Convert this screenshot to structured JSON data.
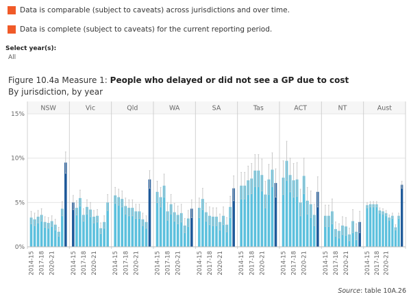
{
  "legend": [
    {
      "text": "Data is comparable (subject to caveats) across jurisdictions and over time.",
      "color": "#f05a28"
    },
    {
      "text": "Data is complete (subject to caveats) for the current reporting period.",
      "color": "#f05a28"
    }
  ],
  "filter": {
    "label": "Select year(s):",
    "value": "All"
  },
  "figure": {
    "title_prefix": "Figure 10.4a Measure 1: ",
    "title_main": "People who delayed or did not see a GP due to cost",
    "subtitle": "By jurisdiction, by year"
  },
  "source": {
    "label": "Source",
    "text": ": table 10A.26"
  },
  "colors": {
    "light": "#5cc0dd",
    "dark": "#1f5a9a",
    "error": "#c8c8c8",
    "grid": "#e4e4e4",
    "separator": "#d0d0d0"
  },
  "chart_data": {
    "type": "bar",
    "panels": [
      "NSW",
      "Vic",
      "Qld",
      "WA",
      "SA",
      "Tas",
      "ACT",
      "NT",
      "Aust"
    ],
    "x_labels": [
      "2014-15",
      "2017-18",
      "2020-21"
    ],
    "y_ticks": [
      "15%",
      "10%",
      "5%",
      "0%"
    ],
    "ylim": [
      0,
      15
    ],
    "series": [
      {
        "jurisdiction": "NSW",
        "values": [
          3.3,
          3.1,
          3.4,
          3.6,
          2.8,
          2.7,
          2.9,
          2.5,
          1.7,
          4.3,
          9.5
        ]
      },
      {
        "jurisdiction": "Vic",
        "values": [
          5.0,
          4.4,
          5.5,
          3.6,
          4.5,
          4.2,
          3.4,
          3.5,
          2.1,
          2.8,
          5.0
        ]
      },
      {
        "jurisdiction": "Qld",
        "values": [
          5.8,
          5.6,
          5.4,
          4.6,
          4.4,
          4.4,
          4.0,
          4.0,
          3.1,
          2.8,
          7.6
        ]
      },
      {
        "jurisdiction": "WA",
        "values": [
          6.2,
          5.6,
          6.9,
          4.0,
          4.8,
          3.9,
          3.6,
          3.8,
          2.4,
          3.2,
          4.3
        ]
      },
      {
        "jurisdiction": "SA",
        "values": [
          4.4,
          5.4,
          3.9,
          3.5,
          3.4,
          3.4,
          2.8,
          3.5,
          2.5,
          4.5,
          6.6
        ]
      },
      {
        "jurisdiction": "Tas",
        "values": [
          6.9,
          6.9,
          7.5,
          7.7,
          8.6,
          8.6,
          8.1,
          5.9,
          7.6,
          8.7,
          7.2
        ]
      },
      {
        "jurisdiction": "ACT",
        "values": [
          7.8,
          9.7,
          8.1,
          7.5,
          7.6,
          5.0,
          8.0,
          5.2,
          4.8,
          3.6,
          6.2
        ]
      },
      {
        "jurisdiction": "NT",
        "values": [
          3.5,
          3.5,
          4.0,
          2.0,
          1.8,
          2.4,
          2.3,
          1.4,
          2.9,
          1.7,
          2.8
        ]
      },
      {
        "jurisdiction": "Aust",
        "values": [
          4.7,
          4.8,
          4.8,
          4.8,
          4.1,
          4.0,
          3.8,
          3.3,
          3.5,
          2.2,
          3.5,
          7.0
        ]
      }
    ],
    "highlighted_index": {
      "NSW": 10,
      "Vic": 0,
      "Qld": 10,
      "WA": 10,
      "SA": 10,
      "Tas": 10,
      "ACT": 10,
      "NT": 10,
      "Aust": 11
    },
    "error_ranges": [
      [
        [
          2.6,
          4.0
        ],
        [
          2.4,
          3.8
        ],
        [
          2.7,
          4.1
        ],
        [
          2.9,
          4.3
        ],
        [
          2.2,
          3.4
        ],
        [
          2.1,
          3.3
        ],
        [
          2.3,
          3.5
        ],
        [
          1.9,
          3.1
        ],
        [
          1.2,
          2.2
        ],
        [
          3.5,
          5.1
        ],
        [
          8.3,
          10.7
        ]
      ],
      [
        [
          4.2,
          5.8
        ],
        [
          3.6,
          5.2
        ],
        [
          4.6,
          6.4
        ],
        [
          2.9,
          4.3
        ],
        [
          3.7,
          5.3
        ],
        [
          3.4,
          5.0
        ],
        [
          2.7,
          4.1
        ],
        [
          2.8,
          4.2
        ],
        [
          1.5,
          2.7
        ],
        [
          2.1,
          3.5
        ],
        [
          4.1,
          5.9
        ]
      ],
      [
        [
          4.9,
          6.7
        ],
        [
          4.7,
          6.5
        ],
        [
          4.5,
          6.3
        ],
        [
          3.7,
          5.5
        ],
        [
          3.5,
          5.3
        ],
        [
          3.5,
          5.3
        ],
        [
          3.2,
          4.8
        ],
        [
          3.2,
          4.8
        ],
        [
          2.4,
          3.8
        ],
        [
          2.1,
          3.5
        ],
        [
          6.6,
          8.6
        ]
      ],
      [
        [
          5.0,
          7.4
        ],
        [
          4.5,
          6.7
        ],
        [
          5.6,
          8.2
        ],
        [
          3.0,
          5.0
        ],
        [
          3.7,
          5.9
        ],
        [
          2.9,
          4.9
        ],
        [
          2.6,
          4.6
        ],
        [
          2.8,
          4.8
        ],
        [
          1.6,
          3.2
        ],
        [
          2.3,
          4.1
        ],
        [
          3.3,
          5.3
        ]
      ],
      [
        [
          3.3,
          5.5
        ],
        [
          4.2,
          6.6
        ],
        [
          2.9,
          4.9
        ],
        [
          2.5,
          4.5
        ],
        [
          2.4,
          4.4
        ],
        [
          2.4,
          4.4
        ],
        [
          1.9,
          3.7
        ],
        [
          2.5,
          4.5
        ],
        [
          1.7,
          3.3
        ],
        [
          3.3,
          5.7
        ],
        [
          5.2,
          8.0
        ]
      ],
      [
        [
          5.4,
          8.4
        ],
        [
          5.4,
          8.4
        ],
        [
          5.9,
          9.1
        ],
        [
          6.0,
          9.4
        ],
        [
          6.8,
          10.4
        ],
        [
          6.8,
          10.4
        ],
        [
          6.3,
          9.9
        ],
        [
          4.4,
          7.4
        ],
        [
          5.9,
          9.3
        ],
        [
          6.8,
          10.6
        ],
        [
          5.6,
          8.8
        ]
      ],
      [
        [
          5.9,
          9.7
        ],
        [
          7.5,
          11.9
        ],
        [
          6.2,
          10.0
        ],
        [
          5.6,
          9.4
        ],
        [
          5.7,
          9.5
        ],
        [
          3.5,
          6.5
        ],
        [
          6.0,
          10.0
        ],
        [
          3.7,
          6.7
        ],
        [
          3.3,
          6.3
        ],
        [
          2.4,
          4.8
        ],
        [
          4.5,
          7.9
        ]
      ],
      [
        [
          2.3,
          4.7
        ],
        [
          2.3,
          4.7
        ],
        [
          2.6,
          5.4
        ],
        [
          1.2,
          2.8
        ],
        [
          1.0,
          2.6
        ],
        [
          1.4,
          3.4
        ],
        [
          1.3,
          3.3
        ],
        [
          0.7,
          2.1
        ],
        [
          1.6,
          4.2
        ],
        [
          0.8,
          2.6
        ],
        [
          1.6,
          4.0
        ]
      ],
      [
        [
          4.4,
          5.0
        ],
        [
          4.5,
          5.1
        ],
        [
          4.5,
          5.1
        ],
        [
          4.5,
          5.1
        ],
        [
          3.8,
          4.4
        ],
        [
          3.7,
          4.3
        ],
        [
          3.5,
          4.1
        ],
        [
          3.0,
          3.6
        ],
        [
          3.2,
          3.8
        ],
        [
          1.9,
          2.5
        ],
        [
          3.2,
          3.8
        ],
        [
          6.6,
          7.4
        ]
      ]
    ]
  }
}
